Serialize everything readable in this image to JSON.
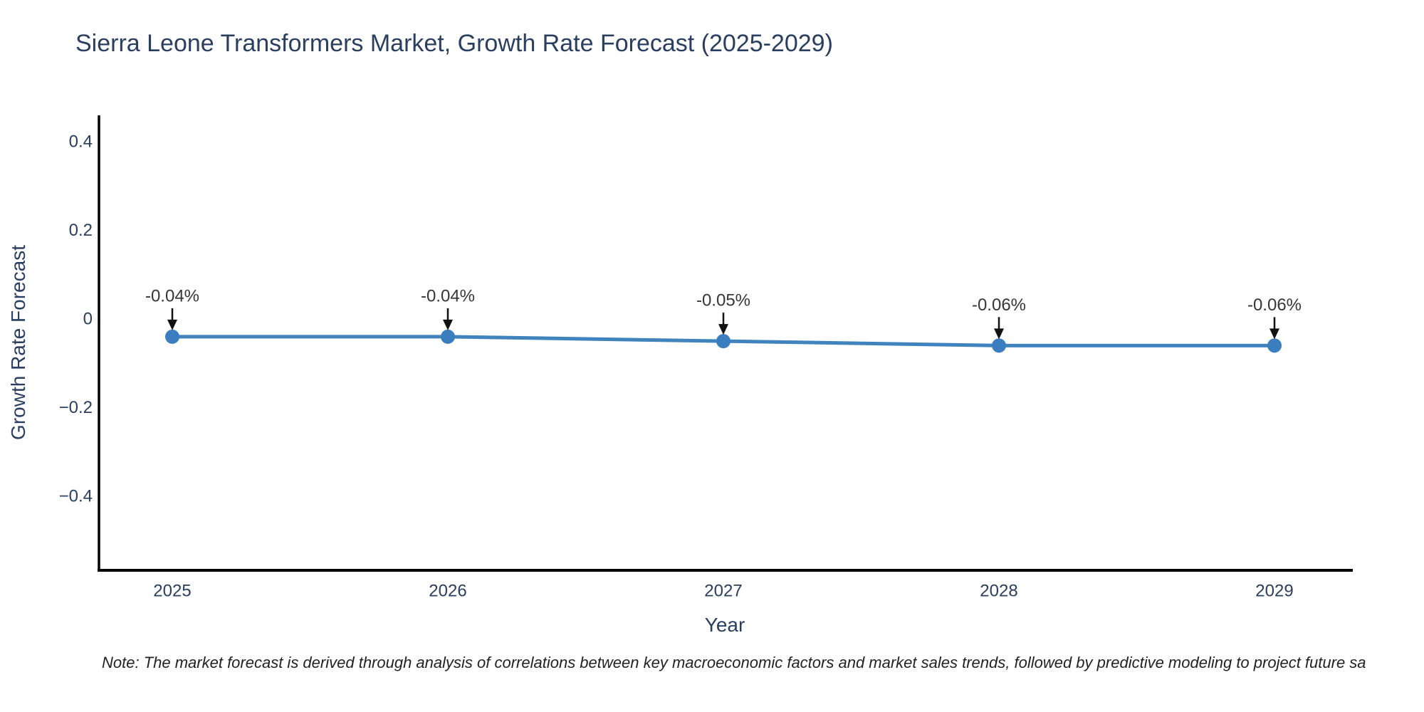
{
  "note": {
    "text": "Note: The market forecast is derived through analysis of correlations between key macroeconomic factors and market sales trends, followed by predictive modeling to project future sa"
  },
  "chart_data": {
    "type": "line",
    "title": "Sierra Leone Transformers Market, Growth Rate Forecast (2025-2029)",
    "xlabel": "Year",
    "ylabel": "Growth Rate Forecast",
    "categories": [
      "2025",
      "2026",
      "2027",
      "2028",
      "2029"
    ],
    "series": [
      {
        "name": "Growth Rate Forecast",
        "values": [
          -0.04,
          -0.04,
          -0.05,
          -0.06,
          -0.06
        ],
        "point_labels": [
          "-0.04%",
          "-0.04%",
          "-0.05%",
          "-0.06%",
          "-0.06%"
        ]
      }
    ],
    "yticks": {
      "values": [
        0.4,
        0.2,
        0,
        -0.2,
        -0.4
      ],
      "labels": [
        "0.4",
        "0.2",
        "0",
        "−0.2",
        "−0.4"
      ]
    },
    "ylim": [
      -0.57,
      0.46
    ],
    "grid": false,
    "legend_position": "none",
    "annotations_have_arrows": true,
    "colors": {
      "line": "#4183bc",
      "marker": "#3a7ebf",
      "axis_line": "#000000",
      "tick_label": "#2a3f5f",
      "title": "#2a3f5f",
      "annotation_text": "#363636",
      "annotation_arrow": "#111111",
      "background": "#ffffff"
    }
  }
}
